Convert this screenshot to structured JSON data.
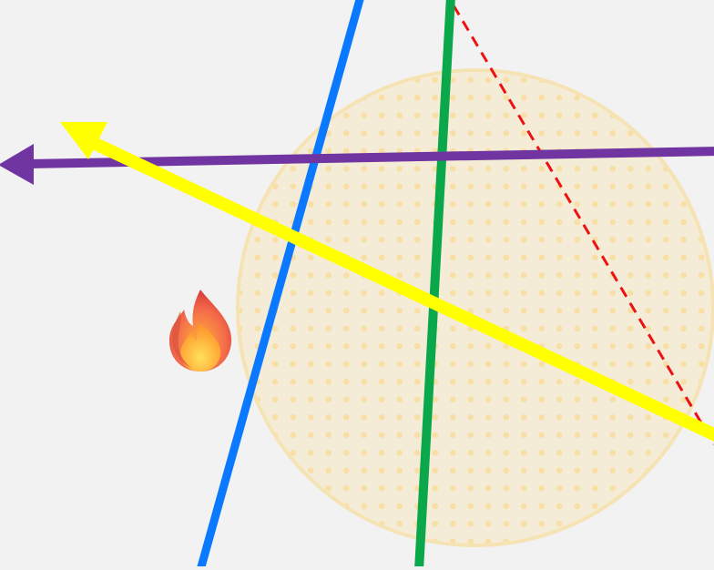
{
  "canvas": {
    "background": "#f2f2f2"
  },
  "shapes": {
    "circle": {
      "fill": "#f8e7c2",
      "stroke": "#f6e3b4",
      "dot_color": "#f7dfa6",
      "pattern": "dots"
    },
    "lines": [
      {
        "name": "blue-line",
        "color": "#0a78ff",
        "style": "solid",
        "arrow": "none"
      },
      {
        "name": "green-line",
        "color": "#0aa84a",
        "style": "solid",
        "arrow": "none"
      },
      {
        "name": "purple-arrow",
        "color": "#7035a0",
        "style": "solid",
        "arrow": "start-left"
      },
      {
        "name": "yellow-arrow",
        "color": "#ffff00",
        "style": "solid",
        "arrow": "end-upper-left"
      },
      {
        "name": "red-dashed-line",
        "color": "#ee1111",
        "style": "dashed",
        "arrow": "none"
      }
    ]
  },
  "icons": {
    "fire": "fire-icon"
  }
}
